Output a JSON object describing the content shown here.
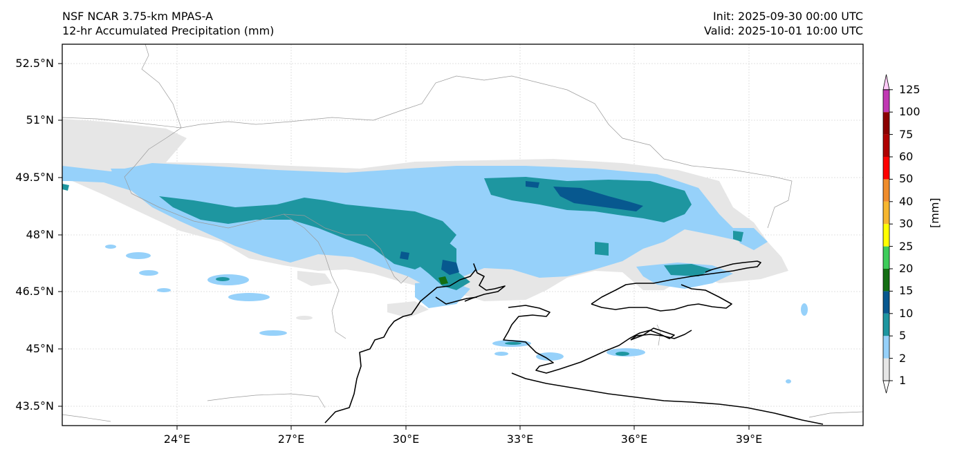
{
  "header": {
    "model": "NSF NCAR 3.75-km MPAS-A",
    "field": "12-hr Accumulated Precipitation (mm)",
    "init": "Init: 2025-09-30 00:00 UTC",
    "valid": "Valid: 2025-10-01 10:00 UTC"
  },
  "axes": {
    "lat_labels": [
      "52.5°N",
      "51°N",
      "49.5°N",
      "48°N",
      "46.5°N",
      "45°N",
      "43.5°N"
    ],
    "lon_labels": [
      "24°E",
      "27°E",
      "30°E",
      "33°E",
      "36°E",
      "39°E"
    ],
    "lat_range": [
      43.0,
      53.0
    ],
    "lon_range": [
      21.0,
      42.0
    ],
    "grid": true
  },
  "colorbar": {
    "title": "[mm]",
    "levels": [
      "1",
      "2",
      "5",
      "10",
      "15",
      "20",
      "25",
      "30",
      "40",
      "50",
      "60",
      "75",
      "100",
      "125"
    ],
    "colors": [
      "#e6e6e6",
      "#96d1fa",
      "#1e96a0",
      "#07588f",
      "#136e13",
      "#3ecd5a",
      "#ffff00",
      "#f6b62f",
      "#ef8c2b",
      "#ff0000",
      "#af0000",
      "#8b0000",
      "#c138b3",
      "#ffcaf8"
    ]
  },
  "colors": {
    "light_gray": "#e6e6e6",
    "light_blue": "#96d1fa",
    "teal": "#1e96a0",
    "dark_blue": "#07588f",
    "green": "#136e13",
    "coast": "#000000",
    "border": "#9a9a9a"
  }
}
